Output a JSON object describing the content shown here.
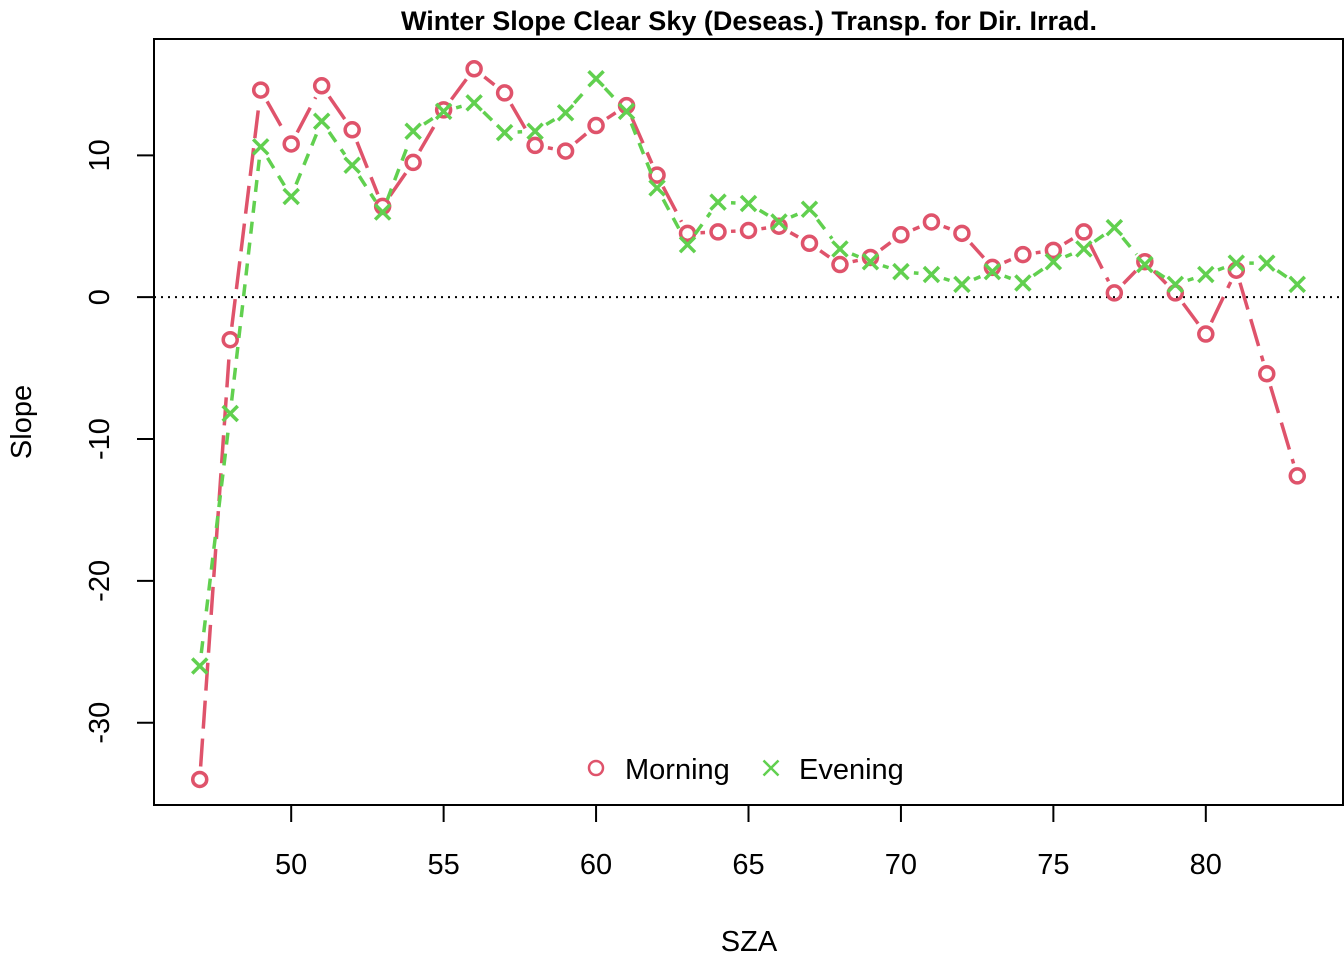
{
  "chart_data": {
    "type": "line",
    "title": "Winter Slope Clear Sky (Deseas.) Transp. for Dir. Irrad.",
    "xlabel": "SZA",
    "ylabel": "Slope",
    "xlim": [
      45.5,
      84.5
    ],
    "ylim": [
      -35.8,
      18.2
    ],
    "x_ticks": [
      50,
      55,
      60,
      65,
      70,
      75,
      80
    ],
    "y_ticks": [
      -30,
      -20,
      -10,
      0,
      10
    ],
    "reference_line": {
      "y": 0,
      "style": "dotted"
    },
    "legend_position": "bottom-center",
    "series": [
      {
        "name": "Morning",
        "color": "#DF536B",
        "marker": "circle",
        "line_style": "dashed",
        "x": [
          47,
          48,
          49,
          50,
          51,
          52,
          53,
          54,
          55,
          56,
          57,
          58,
          59,
          60,
          61,
          62,
          63,
          64,
          65,
          66,
          67,
          68,
          69,
          70,
          71,
          72,
          73,
          74,
          75,
          76,
          77,
          78,
          79,
          80,
          81,
          82,
          83
        ],
        "values": [
          -34.0,
          -3.0,
          14.6,
          10.8,
          14.9,
          11.8,
          6.4,
          9.5,
          13.2,
          16.1,
          14.4,
          10.7,
          10.3,
          12.1,
          13.5,
          8.6,
          4.5,
          4.6,
          4.7,
          5.0,
          3.8,
          2.3,
          2.8,
          4.4,
          5.3,
          4.5,
          2.1,
          3.0,
          3.3,
          4.6,
          0.3,
          2.5,
          0.3,
          -2.6,
          1.9,
          -5.4,
          -12.6
        ]
      },
      {
        "name": "Evening",
        "color": "#61D04F",
        "marker": "cross",
        "line_style": "short-dashed",
        "x": [
          47,
          48,
          49,
          50,
          51,
          52,
          53,
          54,
          55,
          56,
          57,
          58,
          59,
          60,
          61,
          62,
          63,
          64,
          65,
          66,
          67,
          68,
          69,
          70,
          71,
          72,
          73,
          74,
          75,
          76,
          77,
          78,
          79,
          80,
          81,
          82,
          83
        ],
        "values": [
          -26.0,
          -8.2,
          10.6,
          7.1,
          12.4,
          9.3,
          6.0,
          11.7,
          13.1,
          13.7,
          11.6,
          11.7,
          13.0,
          15.4,
          13.1,
          7.7,
          3.7,
          6.7,
          6.6,
          5.3,
          6.2,
          3.4,
          2.5,
          1.8,
          1.6,
          0.9,
          1.8,
          1.0,
          2.5,
          3.4,
          4.9,
          2.3,
          0.9,
          1.6,
          2.4,
          2.4,
          0.9
        ]
      }
    ]
  }
}
